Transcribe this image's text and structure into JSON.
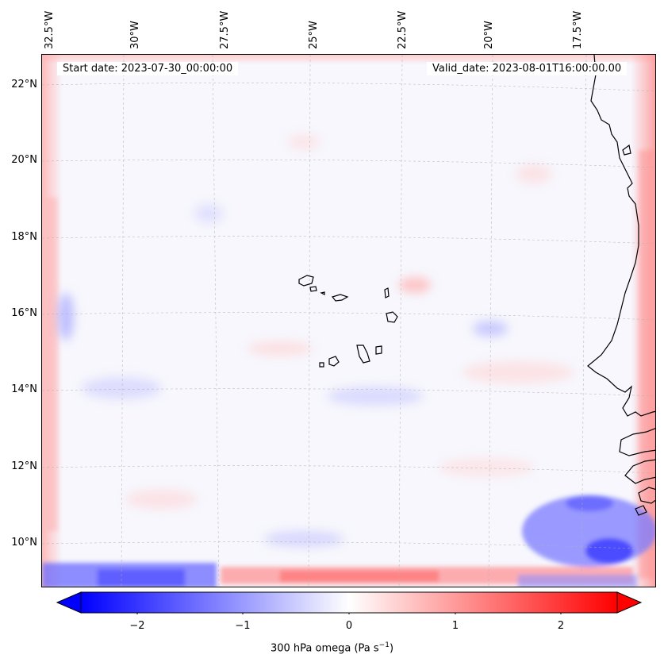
{
  "map": {
    "start_date_label": "Start date: 2023-07-30_00:00:00",
    "valid_date_label": "Valid_date: 2023-08-01T16:00:00.00",
    "longitude_labels": [
      "32.5°W",
      "30°W",
      "27.5°W",
      "25°W",
      "22.5°W",
      "20°W",
      "17.5°W"
    ],
    "latitude_labels": [
      "22°N",
      "20°N",
      "18°N",
      "16°N",
      "14°N",
      "12°N",
      "10°N"
    ],
    "field": "300 hPa omega",
    "colors": {
      "negative": "#0000ff",
      "zero": "#ffffff",
      "positive": "#ff0000",
      "coastline": "#000000",
      "gridline": "#b0b0b0"
    }
  },
  "colorbar": {
    "ticks": [
      "−2",
      "−1",
      "0",
      "1",
      "2"
    ],
    "min": -2.7,
    "max": 2.7,
    "label_prefix": "300 hPa omega (Pa s",
    "label_exp": "−1",
    "label_suffix": ")"
  }
}
